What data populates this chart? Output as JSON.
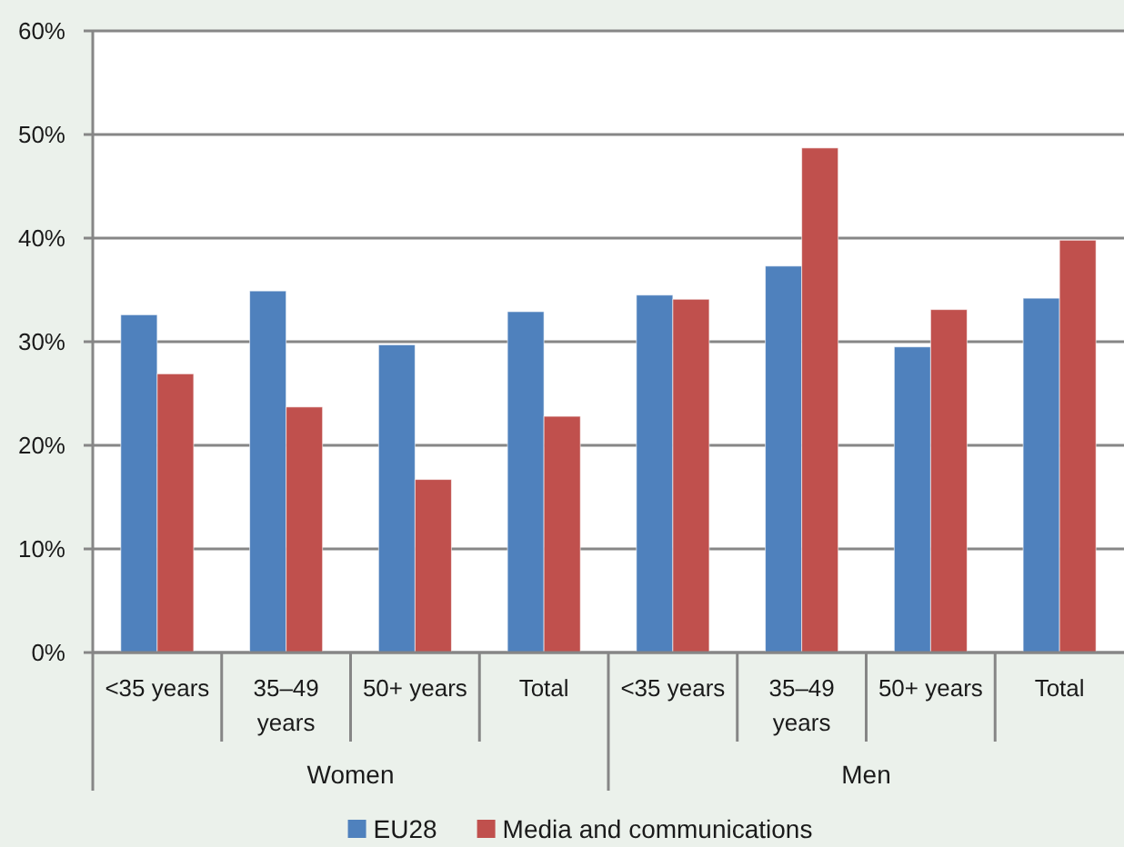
{
  "chart_data": {
    "type": "bar",
    "categories": [
      "<35 years",
      "35–49 years",
      "50+ years",
      "Total",
      "<35 years",
      "35–49 years",
      "50+ years",
      "Total"
    ],
    "series": [
      {
        "name": "EU28",
        "color": "#4f81bd",
        "values": [
          32.6,
          34.9,
          29.7,
          32.9,
          34.5,
          37.3,
          29.5,
          34.2
        ]
      },
      {
        "name": "Media and communications",
        "color": "#c0504d",
        "values": [
          26.9,
          23.7,
          16.7,
          22.8,
          34.1,
          48.7,
          33.1,
          39.8
        ]
      }
    ],
    "ylim": [
      0,
      60
    ],
    "yticks": [
      {
        "value": 0,
        "label": "0%"
      },
      {
        "value": 10,
        "label": "10%"
      },
      {
        "value": 20,
        "label": "20%"
      },
      {
        "value": 30,
        "label": "30%"
      },
      {
        "value": 40,
        "label": "40%"
      },
      {
        "value": 50,
        "label": "50%"
      },
      {
        "value": 60,
        "label": "60%"
      }
    ],
    "grid": "y",
    "legend": "bottom",
    "annotations": [
      "Women",
      "Men"
    ]
  }
}
